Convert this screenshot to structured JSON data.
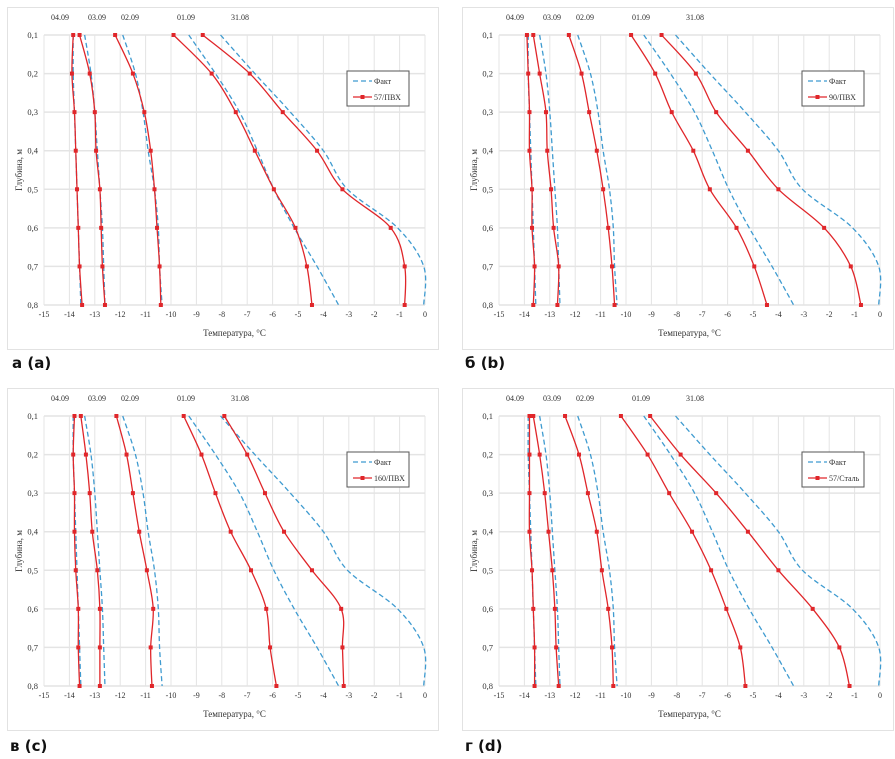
{
  "chart_data": [
    {
      "id": "a",
      "type": "line",
      "caption": "а (a)",
      "xlabel": "Температура, °C",
      "ylabel": "Глубина, м",
      "xlim": [
        -15,
        0
      ],
      "ylim": [
        0.8,
        0.1
      ],
      "y_inverted": true,
      "grid": true,
      "legend_position": "top-right",
      "x_ticks": [
        "-15",
        "-14",
        "-13",
        "-12",
        "-11",
        "-10",
        "-9",
        "-8",
        "-7",
        "-6",
        "-5",
        "-4",
        "-3",
        "-2",
        "-1",
        "0"
      ],
      "y_ticks": [
        "0,1",
        "0,2",
        "0,3",
        "0,4",
        "0,5",
        "0,6",
        "0,7",
        "0,8"
      ],
      "depth": [
        0.1,
        0.2,
        0.3,
        0.4,
        0.5,
        0.6,
        0.7,
        0.8
      ],
      "date_labels": [
        "04.09",
        "03.09",
        "02.09",
        "01.09",
        "31.08"
      ],
      "legend": [
        "Факт",
        "57/ПВХ"
      ],
      "fact": [
        {
          "date": "04.09",
          "values": [
            -13.85,
            -13.85,
            -13.8,
            -13.75,
            -13.7,
            -13.65,
            -13.6,
            -13.55
          ]
        },
        {
          "date": "03.09",
          "values": [
            -13.4,
            -13.15,
            -13.0,
            -12.9,
            -12.8,
            -12.7,
            -12.65,
            -12.6
          ]
        },
        {
          "date": "02.09",
          "values": [
            -11.9,
            -11.4,
            -11.1,
            -10.9,
            -10.65,
            -10.5,
            -10.45,
            -10.35
          ]
        },
        {
          "date": "01.09",
          "values": [
            -9.3,
            -8.25,
            -7.3,
            -6.6,
            -5.95,
            -5.15,
            -4.25,
            -3.4
          ]
        },
        {
          "date": "31.08",
          "values": [
            -8.05,
            -6.7,
            -5.3,
            -4.0,
            -3.05,
            -1.08,
            -0.05,
            -0.05
          ]
        }
      ],
      "model": [
        {
          "date": "04.09",
          "values": [
            -13.85,
            -13.9,
            -13.8,
            -13.75,
            -13.7,
            -13.65,
            -13.6,
            -13.5
          ]
        },
        {
          "date": "03.09",
          "values": [
            -13.6,
            -13.2,
            -13.0,
            -12.95,
            -12.8,
            -12.75,
            -12.7,
            -12.6
          ]
        },
        {
          "date": "02.09",
          "values": [
            -12.2,
            -11.5,
            -11.05,
            -10.8,
            -10.65,
            -10.55,
            -10.45,
            -10.4
          ]
        },
        {
          "date": "01.09",
          "values": [
            -9.9,
            -8.4,
            -7.45,
            -6.7,
            -5.95,
            -5.1,
            -4.65,
            -4.45
          ]
        },
        {
          "date": "31.08",
          "values": [
            -8.75,
            -6.9,
            -5.6,
            -4.25,
            -3.25,
            -1.35,
            -0.8,
            -0.8
          ]
        }
      ]
    },
    {
      "id": "b",
      "type": "line",
      "caption": "б (b)",
      "xlabel": "Температура, °C",
      "ylabel": "Глубина, м",
      "xlim": [
        -15,
        0
      ],
      "ylim": [
        0.8,
        0.1
      ],
      "y_inverted": true,
      "grid": true,
      "legend_position": "top-right",
      "x_ticks": [
        "-15",
        "-14",
        "-13",
        "-12",
        "-11",
        "-10",
        "-9",
        "-8",
        "-7",
        "-6",
        "-5",
        "-4",
        "-3",
        "-2",
        "-1",
        "0"
      ],
      "y_ticks": [
        "0,1",
        "0,2",
        "0,3",
        "0,4",
        "0,5",
        "0,6",
        "0,7",
        "0,8"
      ],
      "depth": [
        0.1,
        0.2,
        0.3,
        0.4,
        0.5,
        0.6,
        0.7,
        0.8
      ],
      "date_labels": [
        "04.09",
        "03.09",
        "02.09",
        "01.09",
        "31.08"
      ],
      "legend": [
        "Факт",
        "90/ПВХ"
      ],
      "fact": [
        {
          "date": "04.09",
          "values": [
            -13.85,
            -13.85,
            -13.8,
            -13.75,
            -13.7,
            -13.65,
            -13.6,
            -13.55
          ]
        },
        {
          "date": "03.09",
          "values": [
            -13.4,
            -13.15,
            -13.0,
            -12.9,
            -12.8,
            -12.7,
            -12.65,
            -12.6
          ]
        },
        {
          "date": "02.09",
          "values": [
            -11.9,
            -11.4,
            -11.1,
            -10.9,
            -10.65,
            -10.5,
            -10.45,
            -10.35
          ]
        },
        {
          "date": "01.09",
          "values": [
            -9.3,
            -8.25,
            -7.3,
            -6.6,
            -5.95,
            -5.15,
            -4.25,
            -3.4
          ]
        },
        {
          "date": "31.08",
          "values": [
            -8.05,
            -6.7,
            -5.3,
            -4.0,
            -3.05,
            -1.08,
            -0.05,
            -0.05
          ]
        }
      ],
      "model": [
        {
          "date": "04.09",
          "values": [
            -13.9,
            -13.85,
            -13.8,
            -13.8,
            -13.7,
            -13.7,
            -13.6,
            -13.65
          ]
        },
        {
          "date": "03.09",
          "values": [
            -13.65,
            -13.4,
            -13.15,
            -13.1,
            -12.95,
            -12.85,
            -12.65,
            -12.7
          ]
        },
        {
          "date": "02.09",
          "values": [
            -12.25,
            -11.75,
            -11.45,
            -11.15,
            -10.9,
            -10.7,
            -10.55,
            -10.45
          ]
        },
        {
          "date": "01.09",
          "values": [
            -9.8,
            -8.85,
            -8.2,
            -7.35,
            -6.7,
            -5.65,
            -4.95,
            -4.45
          ]
        },
        {
          "date": "31.08",
          "values": [
            -8.6,
            -7.25,
            -6.45,
            -5.2,
            -4.0,
            -2.2,
            -1.15,
            -0.75
          ]
        }
      ]
    },
    {
      "id": "c",
      "type": "line",
      "caption": "в (c)",
      "xlabel": "Температура, °C",
      "ylabel": "Глубина, м",
      "xlim": [
        -15,
        0
      ],
      "ylim": [
        0.8,
        0.1
      ],
      "y_inverted": true,
      "grid": true,
      "legend_position": "top-right",
      "x_ticks": [
        "-15",
        "-14",
        "-13",
        "-12",
        "-11",
        "-10",
        "-9",
        "-8",
        "-7",
        "-6",
        "-5",
        "-4",
        "-3",
        "-2",
        "-1",
        "0"
      ],
      "y_ticks": [
        "0,1",
        "0,2",
        "0,3",
        "0,4",
        "0,5",
        "0,6",
        "0,7",
        "0,8"
      ],
      "depth": [
        0.1,
        0.2,
        0.3,
        0.4,
        0.5,
        0.6,
        0.7,
        0.8
      ],
      "date_labels": [
        "04.09",
        "03.09",
        "02.09",
        "01.09",
        "31.08"
      ],
      "legend": [
        "Факт",
        "160/ПВХ"
      ],
      "fact": [
        {
          "date": "04.09",
          "values": [
            -13.85,
            -13.85,
            -13.8,
            -13.75,
            -13.7,
            -13.65,
            -13.6,
            -13.55
          ]
        },
        {
          "date": "03.09",
          "values": [
            -13.4,
            -13.15,
            -13.0,
            -12.9,
            -12.8,
            -12.7,
            -12.65,
            -12.6
          ]
        },
        {
          "date": "02.09",
          "values": [
            -11.9,
            -11.4,
            -11.1,
            -10.9,
            -10.65,
            -10.5,
            -10.45,
            -10.35
          ]
        },
        {
          "date": "01.09",
          "values": [
            -9.3,
            -8.25,
            -7.3,
            -6.6,
            -5.95,
            -5.15,
            -4.25,
            -3.4
          ]
        },
        {
          "date": "31.08",
          "values": [
            -8.05,
            -6.7,
            -5.3,
            -4.0,
            -3.05,
            -1.08,
            -0.05,
            -0.05
          ]
        }
      ],
      "model": [
        {
          "date": "04.09",
          "values": [
            -13.8,
            -13.85,
            -13.8,
            -13.8,
            -13.75,
            -13.65,
            -13.65,
            -13.6
          ]
        },
        {
          "date": "03.09",
          "values": [
            -13.55,
            -13.35,
            -13.2,
            -13.1,
            -12.9,
            -12.8,
            -12.8,
            -12.8
          ]
        },
        {
          "date": "02.09",
          "values": [
            -12.15,
            -11.75,
            -11.5,
            -11.25,
            -10.95,
            -10.7,
            -10.8,
            -10.75
          ]
        },
        {
          "date": "01.09",
          "values": [
            -9.5,
            -8.8,
            -8.25,
            -7.65,
            -6.85,
            -6.25,
            -6.1,
            -5.85
          ]
        },
        {
          "date": "31.08",
          "values": [
            -7.9,
            -7.0,
            -6.3,
            -5.55,
            -4.45,
            -3.3,
            -3.25,
            -3.2
          ]
        }
      ]
    },
    {
      "id": "d",
      "type": "line",
      "caption": "г (d)",
      "xlabel": "Температура, °C",
      "ylabel": "Глубина, м",
      "xlim": [
        -15,
        0
      ],
      "ylim": [
        0.8,
        0.1
      ],
      "y_inverted": true,
      "grid": true,
      "legend_position": "top-right",
      "x_ticks": [
        "-15",
        "-14",
        "-13",
        "-12",
        "-11",
        "-10",
        "-9",
        "-8",
        "-7",
        "-6",
        "-5",
        "-4",
        "-3",
        "-2",
        "-1",
        "0"
      ],
      "y_ticks": [
        "0,1",
        "0,2",
        "0,3",
        "0,4",
        "0,5",
        "0,6",
        "0,7",
        "0,8"
      ],
      "depth": [
        0.1,
        0.2,
        0.3,
        0.4,
        0.5,
        0.6,
        0.7,
        0.8
      ],
      "date_labels": [
        "04.09",
        "03.09",
        "02.09",
        "01.09",
        "31.08"
      ],
      "legend": [
        "Факт",
        "57/Сталь"
      ],
      "fact": [
        {
          "date": "04.09",
          "values": [
            -13.85,
            -13.85,
            -13.8,
            -13.75,
            -13.7,
            -13.65,
            -13.6,
            -13.55
          ]
        },
        {
          "date": "03.09",
          "values": [
            -13.4,
            -13.15,
            -13.0,
            -12.9,
            -12.8,
            -12.7,
            -12.65,
            -12.6
          ]
        },
        {
          "date": "02.09",
          "values": [
            -11.9,
            -11.4,
            -11.1,
            -10.9,
            -10.65,
            -10.5,
            -10.45,
            -10.35
          ]
        },
        {
          "date": "01.09",
          "values": [
            -9.3,
            -8.25,
            -7.3,
            -6.6,
            -5.95,
            -5.15,
            -4.25,
            -3.4
          ]
        },
        {
          "date": "31.08",
          "values": [
            -8.05,
            -6.7,
            -5.3,
            -4.0,
            -3.05,
            -1.08,
            -0.05,
            -0.05
          ]
        }
      ],
      "model": [
        {
          "date": "04.09",
          "values": [
            -13.8,
            -13.8,
            -13.8,
            -13.8,
            -13.7,
            -13.65,
            -13.6,
            -13.6
          ]
        },
        {
          "date": "03.09",
          "values": [
            -13.65,
            -13.4,
            -13.2,
            -13.05,
            -12.9,
            -12.8,
            -12.75,
            -12.65
          ]
        },
        {
          "date": "02.09",
          "values": [
            -12.4,
            -11.85,
            -11.5,
            -11.15,
            -10.95,
            -10.7,
            -10.55,
            -10.5
          ]
        },
        {
          "date": "01.09",
          "values": [
            -10.2,
            -9.15,
            -8.3,
            -7.4,
            -6.65,
            -6.05,
            -5.5,
            -5.3
          ]
        },
        {
          "date": "31.08",
          "values": [
            -9.05,
            -7.85,
            -6.45,
            -5.2,
            -4.0,
            -2.65,
            -1.6,
            -1.2
          ]
        }
      ]
    }
  ],
  "colors": {
    "fact": "#3f9bd0",
    "model": "#e0262a",
    "grid": "#e4e4e4",
    "text": "#333333"
  }
}
